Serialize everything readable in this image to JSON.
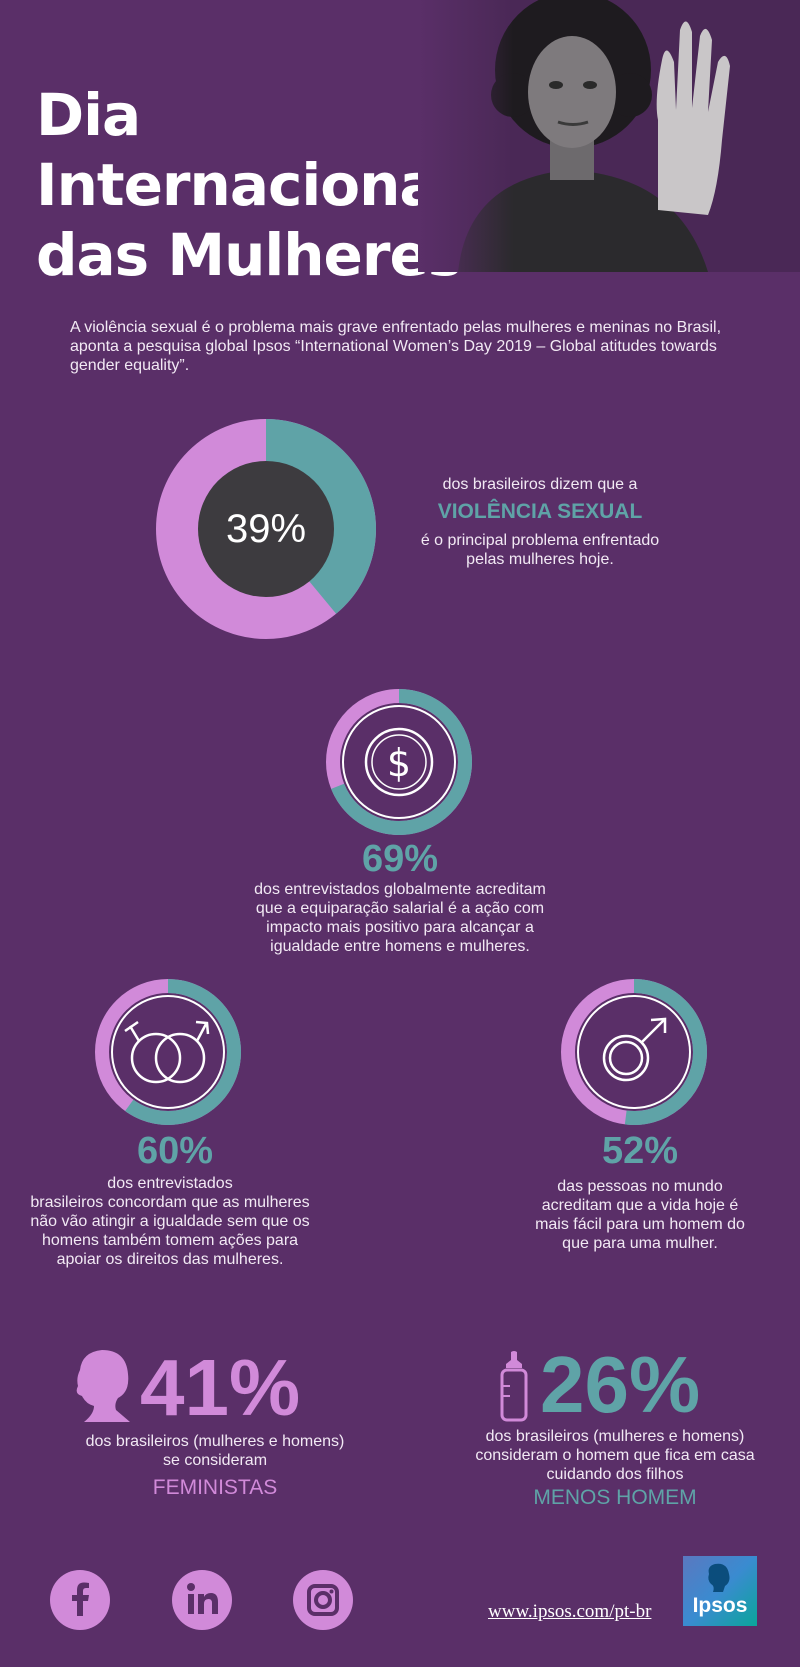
{
  "header": {
    "title_line1": "Dia Internacional",
    "title_line2": "das Mulheres"
  },
  "intro_text": "A violência sexual é o problema mais grave enfrentado pelas mulheres e meninas no Brasil, aponta a pesquisa global Ipsos “International Women’s Day 2019 – Global atitudes towards gender equality”.",
  "stat1": {
    "value": "39%",
    "fraction": 0.39,
    "line1": "dos brasileiros dizem que a",
    "highlight": "VIOLÊNCIA SEXUAL",
    "line2": "é o principal problema enfrentado",
    "line3": "pelas mulheres hoje."
  },
  "stat2": {
    "value": "69%",
    "fraction": 0.69,
    "icon": "dollar-icon",
    "lines": [
      "dos entrevistados globalmente acreditam",
      "que a equiparação salarial é a ação com",
      "impacto mais positivo para alcançar a",
      "igualdade entre homens e mulheres."
    ]
  },
  "stat3": {
    "value": "60%",
    "fraction": 0.6,
    "icon": "gender-symbols-icon",
    "lines": [
      "dos entrevistados",
      "brasileiros concordam que as mulheres",
      "não vão atingir a igualdade sem que os",
      "homens também tomem ações para",
      "apoiar os direitos das mulheres."
    ]
  },
  "stat4": {
    "value": "52%",
    "fraction": 0.52,
    "icon": "male-symbol-icon",
    "lines": [
      "das pessoas no mundo",
      "acreditam que a vida hoje é",
      "mais fácil para um homem do",
      "que para uma mulher."
    ]
  },
  "stat5": {
    "value": "41%",
    "icon": "woman-silhouette-icon",
    "lines": [
      "dos brasileiros (mulheres e homens)",
      "se consideram"
    ],
    "highlight": "FEMINISTAS"
  },
  "stat6": {
    "value": "26%",
    "icon": "baby-bottle-icon",
    "lines": [
      "dos brasileiros (mulheres e homens)",
      "consideram o homem que fica em casa",
      "cuidando dos filhos"
    ],
    "highlight": "MENOS HOMEM"
  },
  "footer": {
    "social": [
      "facebook-icon",
      "linkedin-icon",
      "instagram-icon"
    ],
    "url": "www.ipsos.com/pt-br",
    "logo_text": "Ipsos"
  },
  "colors": {
    "background": "#5a2f68",
    "pink": "#d18ad9",
    "teal": "#5fa3a7",
    "dark": "#3d3b3f"
  }
}
